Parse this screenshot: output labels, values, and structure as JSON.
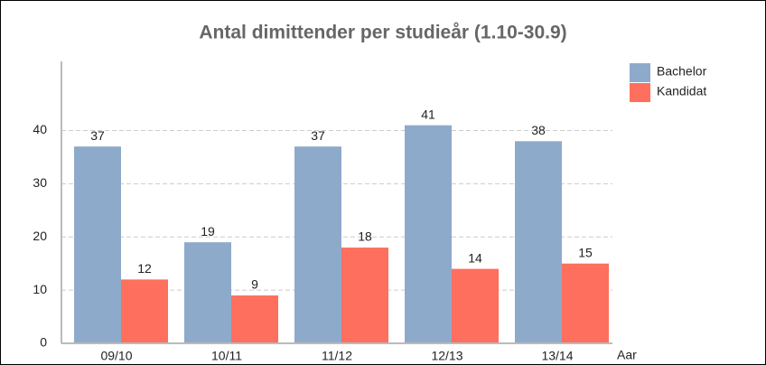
{
  "chart_data": {
    "type": "bar",
    "title": "Antal dimittender per studieår (1.10-30.9)",
    "x_label": "Aar",
    "categories": [
      "09/10",
      "10/11",
      "11/12",
      "12/13",
      "13/14"
    ],
    "series": [
      {
        "name": "Bachelor",
        "color": "#8eaacb",
        "values": [
          37,
          19,
          37,
          41,
          38
        ]
      },
      {
        "name": "Kandidat",
        "color": "#fe6f5e",
        "values": [
          12,
          9,
          18,
          14,
          15
        ]
      }
    ],
    "ylim": [
      0,
      53
    ],
    "yticks": [
      0,
      10,
      20,
      30,
      40
    ],
    "grid": true,
    "legend": "top-right"
  }
}
